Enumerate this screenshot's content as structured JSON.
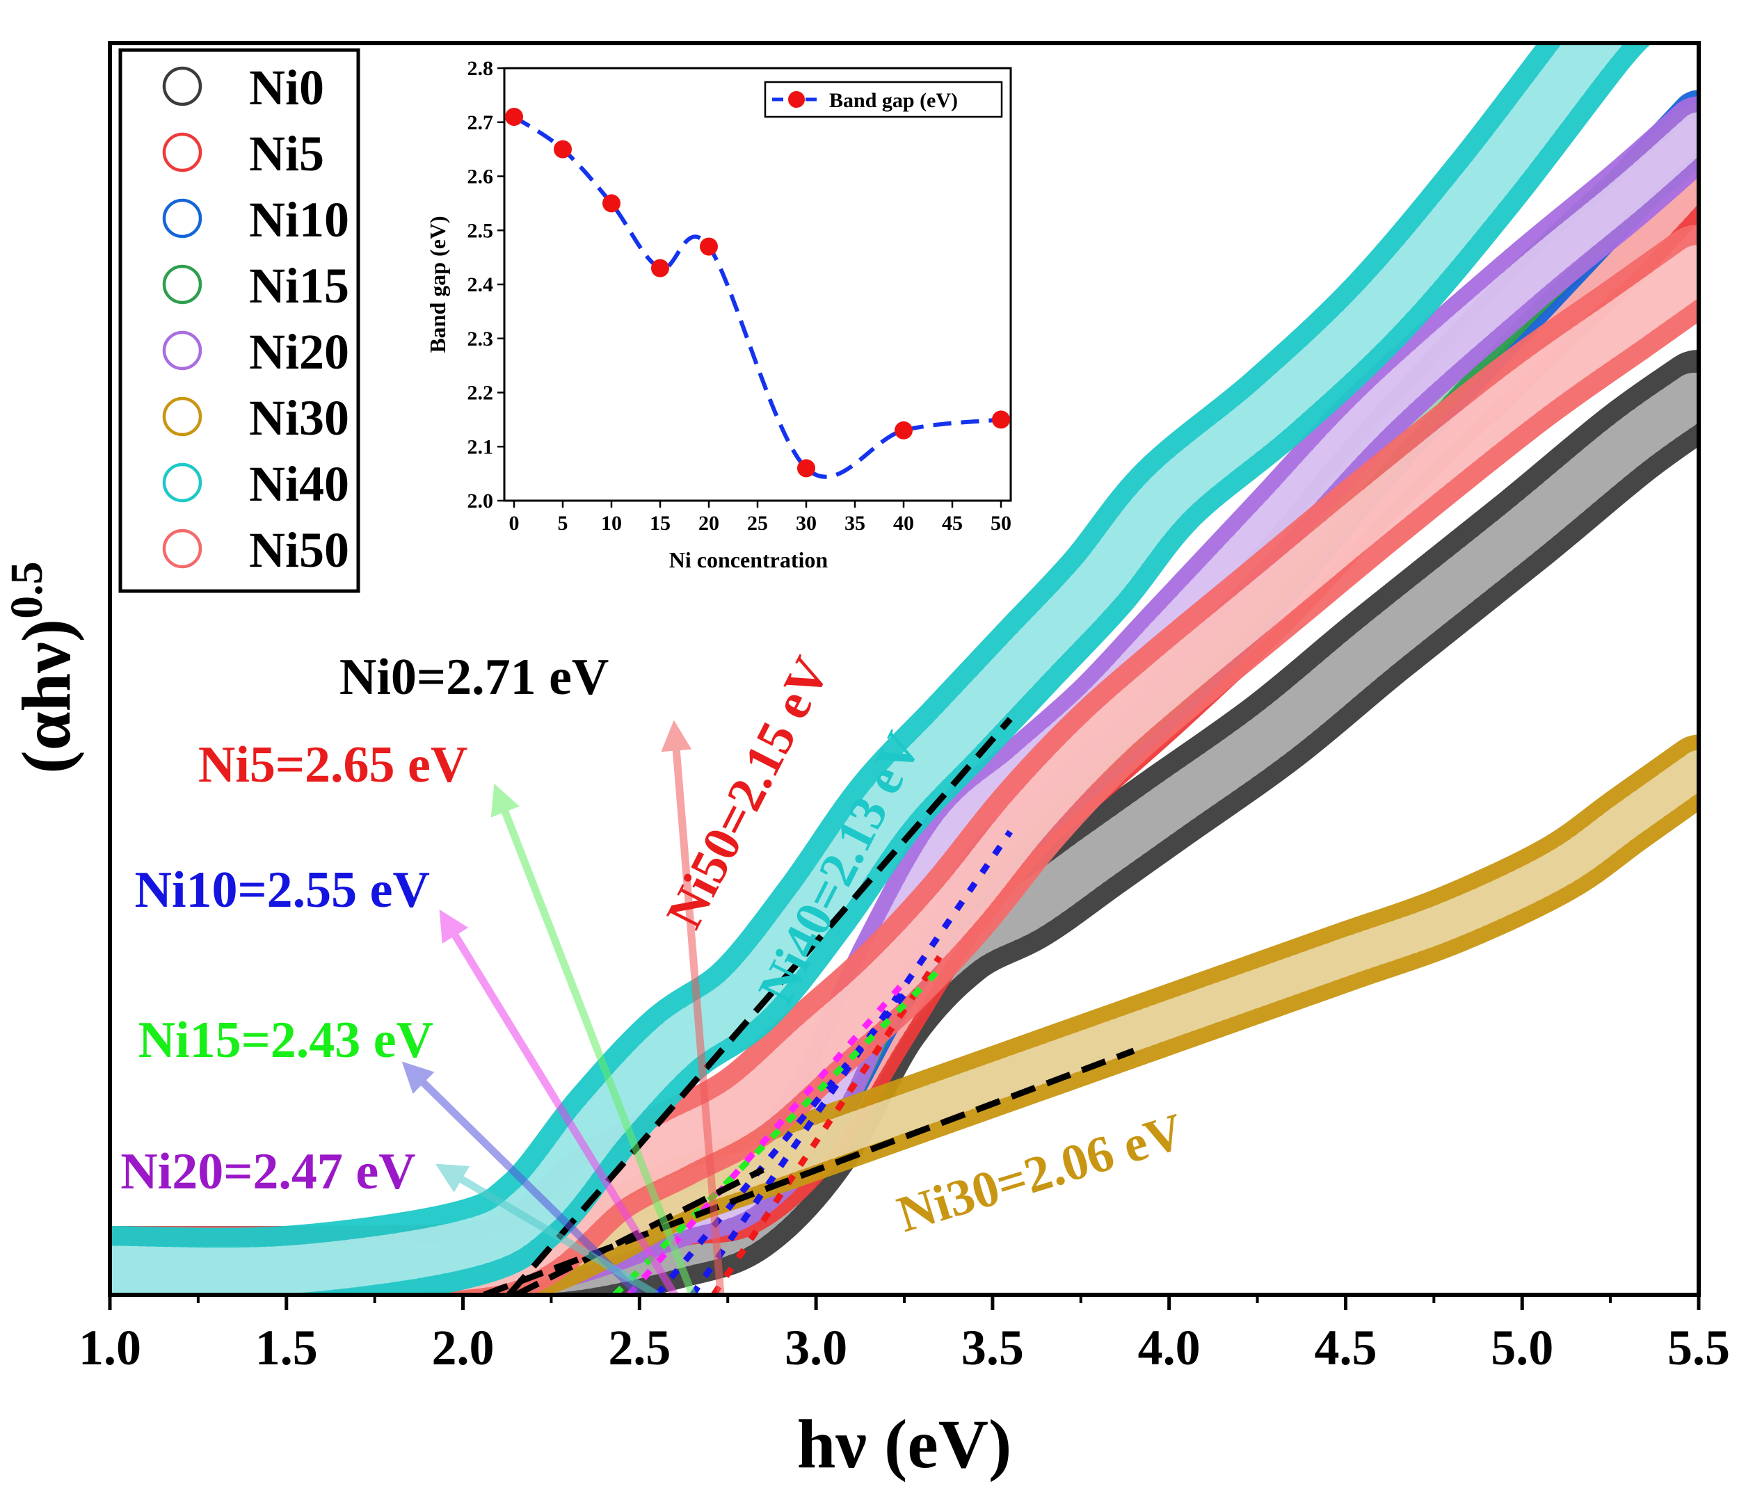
{
  "chart_data": [
    {
      "type": "line",
      "role": "main",
      "xlabel": "hν (eV)",
      "ylabel": "(αhν)",
      "ylabel_exponent": "0.5",
      "xlim": [
        1.0,
        5.5
      ],
      "ylim": [
        0,
        100
      ],
      "x_ticks": [
        "1.0",
        "1.5",
        "2.0",
        "2.5",
        "3.0",
        "3.5",
        "4.0",
        "4.5",
        "5.0",
        "5.5"
      ],
      "x_tick_values": [
        1.0,
        1.5,
        2.0,
        2.5,
        3.0,
        3.5,
        4.0,
        4.5,
        5.0,
        5.5
      ],
      "legend_position": "top-left",
      "series": [
        {
          "name": "Ni0",
          "color": "#3c3c3c",
          "thickness": 7.0,
          "x": [
            1.0,
            1.5,
            2.0,
            2.3,
            2.6,
            2.8,
            3.0,
            3.2,
            3.4,
            3.6,
            3.8,
            4.0,
            4.3,
            4.6,
            5.0,
            5.3,
            5.5
          ],
          "y": [
            2.0,
            2.0,
            2.0,
            2.2,
            4.0,
            6.0,
            12.0,
            22.0,
            28.0,
            31.0,
            35.0,
            39.0,
            45.0,
            52.0,
            61.0,
            68.0,
            72.0
          ]
        },
        {
          "name": "Ni5",
          "color": "#ee3a3a",
          "thickness": 4.5,
          "x": [
            1.0,
            2.0,
            2.3,
            2.6,
            2.8,
            3.0,
            3.2,
            3.4,
            3.6,
            3.8,
            4.0,
            4.3,
            4.6,
            5.0,
            5.3,
            5.5
          ],
          "y": [
            2.0,
            2.0,
            3.0,
            6.0,
            7.0,
            12.0,
            21.0,
            30.0,
            37.0,
            42.0,
            47.0,
            55.0,
            64.0,
            75.0,
            83.0,
            89.0
          ]
        },
        {
          "name": "Ni10",
          "color": "#1565d8",
          "thickness": 4.5,
          "x": [
            1.0,
            2.0,
            2.3,
            2.6,
            2.8,
            3.0,
            3.2,
            3.4,
            3.6,
            3.8,
            4.0,
            4.3,
            4.6,
            5.0,
            5.3,
            5.5
          ],
          "y": [
            2.0,
            2.0,
            3.5,
            6.5,
            8.0,
            14.0,
            24.0,
            32.0,
            38.0,
            43.0,
            48.0,
            57.0,
            67.0,
            79.0,
            88.0,
            94.0
          ]
        },
        {
          "name": "Ni15",
          "color": "#2e9e4f",
          "thickness": 4.5,
          "x": [
            1.0,
            2.0,
            2.3,
            2.6,
            2.8,
            3.0,
            3.2,
            3.4,
            3.6,
            3.8,
            4.0,
            4.3,
            4.6,
            5.0,
            5.3,
            5.5
          ],
          "y": [
            2.0,
            2.0,
            3.5,
            6.5,
            8.0,
            14.0,
            25.0,
            33.0,
            39.0,
            44.0,
            49.0,
            58.0,
            68.0,
            80.0,
            88.0,
            93.0
          ]
        },
        {
          "name": "Ni20",
          "color": "#a86ee0",
          "thickness": 5.5,
          "x": [
            1.0,
            2.0,
            2.3,
            2.6,
            2.8,
            3.0,
            3.2,
            3.4,
            3.6,
            3.8,
            4.0,
            4.3,
            4.6,
            5.0,
            5.3,
            5.5
          ],
          "y": [
            2.0,
            2.0,
            3.5,
            6.5,
            8.5,
            15.0,
            27.0,
            37.0,
            42.0,
            47.0,
            53.0,
            62.0,
            71.0,
            81.0,
            88.0,
            93.0
          ]
        },
        {
          "name": "Ni30",
          "color": "#c89612",
          "thickness": 5.5,
          "x": [
            1.0,
            2.0,
            2.2,
            2.4,
            2.6,
            2.8,
            3.0,
            3.3,
            3.6,
            3.9,
            4.2,
            4.5,
            4.8,
            5.1,
            5.3,
            5.5
          ],
          "y": [
            2.0,
            2.0,
            2.5,
            5.0,
            8.0,
            10.0,
            12.0,
            15.0,
            18.0,
            21.0,
            24.0,
            27.0,
            30.0,
            34.0,
            38.0,
            42.0
          ]
        },
        {
          "name": "Ni40",
          "color": "#1ec8c8",
          "thickness": 7.0,
          "x": [
            1.0,
            1.5,
            2.0,
            2.2,
            2.4,
            2.6,
            2.8,
            3.0,
            3.2,
            3.4,
            3.6,
            3.8,
            4.0,
            4.3,
            4.6,
            4.9,
            5.2,
            5.3
          ],
          "y": [
            2.0,
            2.0,
            4.0,
            7.0,
            14.0,
            20.0,
            24.0,
            31.0,
            39.0,
            45.0,
            51.0,
            57.0,
            64.0,
            71.0,
            79.0,
            89.0,
            100.0,
            103.0
          ]
        },
        {
          "name": "Ni50",
          "color": "#f46a6a",
          "thickness": 7.0,
          "x": [
            1.0,
            1.5,
            2.0,
            2.2,
            2.4,
            2.6,
            2.8,
            3.0,
            3.2,
            3.4,
            3.6,
            3.8,
            4.0,
            4.3,
            4.6,
            5.0,
            5.3,
            5.5
          ],
          "y": [
            2.0,
            2.0,
            2.3,
            4.0,
            9.0,
            12.0,
            15.0,
            20.0,
            25.0,
            31.0,
            38.0,
            44.0,
            49.0,
            56.0,
            63.0,
            72.0,
            78.0,
            82.0
          ]
        }
      ],
      "fit_lines": [
        {
          "name": "Ni0 fit",
          "color": "#f01818",
          "dash": "dot",
          "x": [
            2.71,
            3.35
          ],
          "y": [
            0.0,
            27.0
          ]
        },
        {
          "name": "Ni5 fit",
          "color": "#1818ee",
          "dash": "dot",
          "x": [
            2.65,
            3.55
          ],
          "y": [
            0.0,
            37.0
          ]
        },
        {
          "name": "Ni10 fit",
          "color": "#1818ee",
          "dash": "dot",
          "x": [
            2.55,
            3.25
          ],
          "y": [
            0.0,
            24.0
          ]
        },
        {
          "name": "Ni15 fit",
          "color": "#22ee22",
          "dash": "dot",
          "x": [
            2.43,
            3.35
          ],
          "y": [
            0.0,
            26.0
          ]
        },
        {
          "name": "Ni20 fit",
          "color": "#ff22ff",
          "dash": "dot",
          "x": [
            2.47,
            3.25
          ],
          "y": [
            0.0,
            25.0
          ]
        },
        {
          "name": "Ni30 fit",
          "color": "#000000",
          "dash": "dash",
          "x": [
            2.06,
            3.9
          ],
          "y": [
            0.0,
            19.5
          ]
        },
        {
          "name": "Ni40 fit",
          "color": "#000000",
          "dash": "dash",
          "x": [
            2.13,
            3.55
          ],
          "y": [
            0.0,
            46.0
          ]
        },
        {
          "name": "Ni50 fit",
          "color": "#000000",
          "dash": "dash",
          "x": [
            2.15,
            2.85
          ],
          "y": [
            0.0,
            10.0
          ]
        }
      ],
      "annotations": [
        {
          "text": "Ni0=2.71 eV",
          "color": "#000000",
          "rotate": 0,
          "x": 1.65,
          "y": 48.0
        },
        {
          "text": "Ni5=2.65 eV",
          "color": "#e81c1c",
          "rotate": 0,
          "x": 1.25,
          "y": 41.0
        },
        {
          "text": "Ni10=2.55 eV",
          "color": "#1414e0",
          "rotate": 0,
          "x": 1.07,
          "y": 31.0
        },
        {
          "text": "Ni15=2.43 eV",
          "color": "#18ee18",
          "rotate": 0,
          "x": 1.08,
          "y": 19.0
        },
        {
          "text": "Ni20=2.47 eV",
          "color": "#9a18c8",
          "rotate": 0,
          "x": 1.03,
          "y": 8.5
        },
        {
          "text": "Ni50=2.15 eV",
          "color": "#e81c1c",
          "rotate": -63,
          "x": 2.66,
          "y": 29.0
        },
        {
          "text": "Ni40=2.13 eV",
          "color": "#1ec8c8",
          "rotate": -63,
          "x": 2.92,
          "y": 23.0
        },
        {
          "text": "Ni30=2.06 eV",
          "color": "#c89612",
          "rotate": -17,
          "x": 3.25,
          "y": 5.0
        }
      ],
      "arrows": [
        {
          "color": "#f05a5a",
          "x": [
            2.73,
            2.6
          ],
          "y": [
            0.0,
            45.0
          ]
        },
        {
          "color": "#66ee66",
          "x": [
            2.65,
            2.1
          ],
          "y": [
            0.0,
            40.0
          ]
        },
        {
          "color": "#ee44ee",
          "x": [
            2.6,
            1.95
          ],
          "y": [
            0.0,
            30.0
          ]
        },
        {
          "color": "#5555dd",
          "x": [
            2.5,
            1.85
          ],
          "y": [
            0.0,
            18.0
          ]
        },
        {
          "color": "#55cccc",
          "x": [
            2.55,
            1.95
          ],
          "y": [
            0.0,
            10.0
          ]
        }
      ]
    },
    {
      "type": "line",
      "role": "inset",
      "xlabel": "Ni concentration",
      "ylabel": "Band gap (eV)",
      "xlim": [
        -1.0,
        51.0
      ],
      "ylim": [
        2.0,
        2.8
      ],
      "x_ticks": [
        "0",
        "5",
        "10",
        "15",
        "20",
        "25",
        "30",
        "35",
        "40",
        "45",
        "50"
      ],
      "x_tick_values": [
        0,
        5,
        10,
        15,
        20,
        25,
        30,
        35,
        40,
        45,
        50
      ],
      "y_ticks": [
        "2.0",
        "2.1",
        "2.2",
        "2.3",
        "2.4",
        "2.5",
        "2.6",
        "2.7",
        "2.8"
      ],
      "y_tick_values": [
        2.0,
        2.1,
        2.2,
        2.3,
        2.4,
        2.5,
        2.6,
        2.7,
        2.8
      ],
      "legend_position": "top-right",
      "series": [
        {
          "name": "Band gap (eV)",
          "color": "#1433ee",
          "marker_color": "#ee1111",
          "x": [
            0,
            5,
            10,
            15,
            20,
            30,
            40,
            50
          ],
          "y": [
            2.71,
            2.65,
            2.55,
            2.43,
            2.47,
            2.06,
            2.13,
            2.15
          ]
        }
      ]
    }
  ]
}
